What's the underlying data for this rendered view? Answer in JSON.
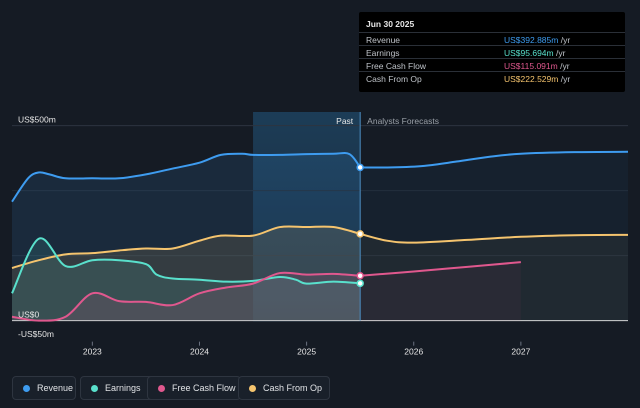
{
  "chart_data": {
    "type": "area",
    "title": "",
    "y_unit": "US$",
    "y_labels": [
      {
        "value": 500,
        "text": "US$500m"
      },
      {
        "value": 0,
        "text": "US$0"
      },
      {
        "value": -50,
        "text": "-US$50m"
      }
    ],
    "ylim": [
      -65,
      535
    ],
    "xlim": [
      2022.25,
      2028.0
    ],
    "x_ticks": [
      {
        "value": 2023.0,
        "text": "2023"
      },
      {
        "value": 2024.0,
        "text": "2024"
      },
      {
        "value": 2025.0,
        "text": "2025"
      },
      {
        "value": 2026.0,
        "text": "2026"
      },
      {
        "value": 2027.0,
        "text": "2027"
      }
    ],
    "past_label": "Past",
    "forecast_label": "Analysts Forecasts",
    "divider_x": 2025.5,
    "highlight_start": 2024.5,
    "series": [
      {
        "name": "Revenue",
        "color": "#3e9cf0",
        "past": [
          [
            2022.25,
            305
          ],
          [
            2022.4,
            365
          ],
          [
            2022.5,
            380
          ],
          [
            2022.6,
            375
          ],
          [
            2022.75,
            365
          ],
          [
            2023.0,
            365
          ],
          [
            2023.25,
            365
          ],
          [
            2023.5,
            375
          ],
          [
            2023.75,
            390
          ],
          [
            2024.0,
            405
          ],
          [
            2024.2,
            425
          ],
          [
            2024.4,
            428
          ],
          [
            2024.5,
            425
          ],
          [
            2024.75,
            425
          ],
          [
            2025.0,
            427
          ],
          [
            2025.25,
            428
          ],
          [
            2025.4,
            427
          ],
          [
            2025.5,
            392.885
          ]
        ],
        "forecast": [
          [
            2025.5,
            392.885
          ],
          [
            2025.8,
            393
          ],
          [
            2026.1,
            397
          ],
          [
            2026.4,
            408
          ],
          [
            2026.7,
            420
          ],
          [
            2027.0,
            428
          ],
          [
            2027.5,
            432
          ],
          [
            2028.0,
            433
          ]
        ]
      },
      {
        "name": "Cash From Op",
        "color": "#f5c46e",
        "past": [
          [
            2022.25,
            135
          ],
          [
            2022.5,
            155
          ],
          [
            2022.75,
            170
          ],
          [
            2023.0,
            173
          ],
          [
            2023.25,
            180
          ],
          [
            2023.5,
            185
          ],
          [
            2023.75,
            185
          ],
          [
            2024.0,
            205
          ],
          [
            2024.2,
            218
          ],
          [
            2024.5,
            218
          ],
          [
            2024.75,
            240
          ],
          [
            2025.0,
            240
          ],
          [
            2025.25,
            240
          ],
          [
            2025.5,
            222.529
          ]
        ],
        "forecast": [
          [
            2025.5,
            222.529
          ],
          [
            2025.75,
            205
          ],
          [
            2026.0,
            200
          ],
          [
            2026.5,
            207
          ],
          [
            2027.0,
            215
          ],
          [
            2027.5,
            219
          ],
          [
            2028.0,
            220
          ]
        ]
      },
      {
        "name": "Earnings",
        "color": "#59e0cc",
        "past": [
          [
            2022.25,
            70
          ],
          [
            2022.5,
            210
          ],
          [
            2022.75,
            140
          ],
          [
            2023.0,
            155
          ],
          [
            2023.25,
            155
          ],
          [
            2023.5,
            145
          ],
          [
            2023.6,
            118
          ],
          [
            2023.75,
            108
          ],
          [
            2024.0,
            105
          ],
          [
            2024.25,
            100
          ],
          [
            2024.5,
            102
          ],
          [
            2024.75,
            112
          ],
          [
            2024.9,
            105
          ],
          [
            2025.0,
            95
          ],
          [
            2025.25,
            100
          ],
          [
            2025.5,
            95.694
          ]
        ],
        "forecast": []
      },
      {
        "name": "Free Cash Flow",
        "color": "#e0588e",
        "past": [
          [
            2022.25,
            10
          ],
          [
            2022.5,
            0
          ],
          [
            2022.75,
            10
          ],
          [
            2023.0,
            70
          ],
          [
            2023.25,
            50
          ],
          [
            2023.5,
            48
          ],
          [
            2023.75,
            40
          ],
          [
            2024.0,
            70
          ],
          [
            2024.25,
            85
          ],
          [
            2024.5,
            95
          ],
          [
            2024.75,
            122
          ],
          [
            2025.0,
            118
          ],
          [
            2025.25,
            120
          ],
          [
            2025.5,
            115.091
          ]
        ],
        "forecast": [
          [
            2025.5,
            115.091
          ],
          [
            2026.0,
            126
          ],
          [
            2026.5,
            138
          ],
          [
            2027.0,
            150
          ]
        ]
      }
    ]
  },
  "tooltip": {
    "date": "Jun 30 2025",
    "rows": [
      {
        "label": "Revenue",
        "value": "US$392.885m",
        "unit": " /yr",
        "color": "#3e9cf0"
      },
      {
        "label": "Earnings",
        "value": "US$95.694m",
        "unit": " /yr",
        "color": "#59e0cc"
      },
      {
        "label": "Free Cash Flow",
        "value": "US$115.091m",
        "unit": " /yr",
        "color": "#e0588e"
      },
      {
        "label": "Cash From Op",
        "value": "US$222.529m",
        "unit": " /yr",
        "color": "#f5c46e"
      }
    ]
  },
  "legend": [
    {
      "label": "Revenue",
      "color": "#3e9cf0"
    },
    {
      "label": "Earnings",
      "color": "#59e0cc"
    },
    {
      "label": "Free Cash Flow",
      "color": "#e0588e"
    },
    {
      "label": "Cash From Op",
      "color": "#f5c46e"
    }
  ]
}
